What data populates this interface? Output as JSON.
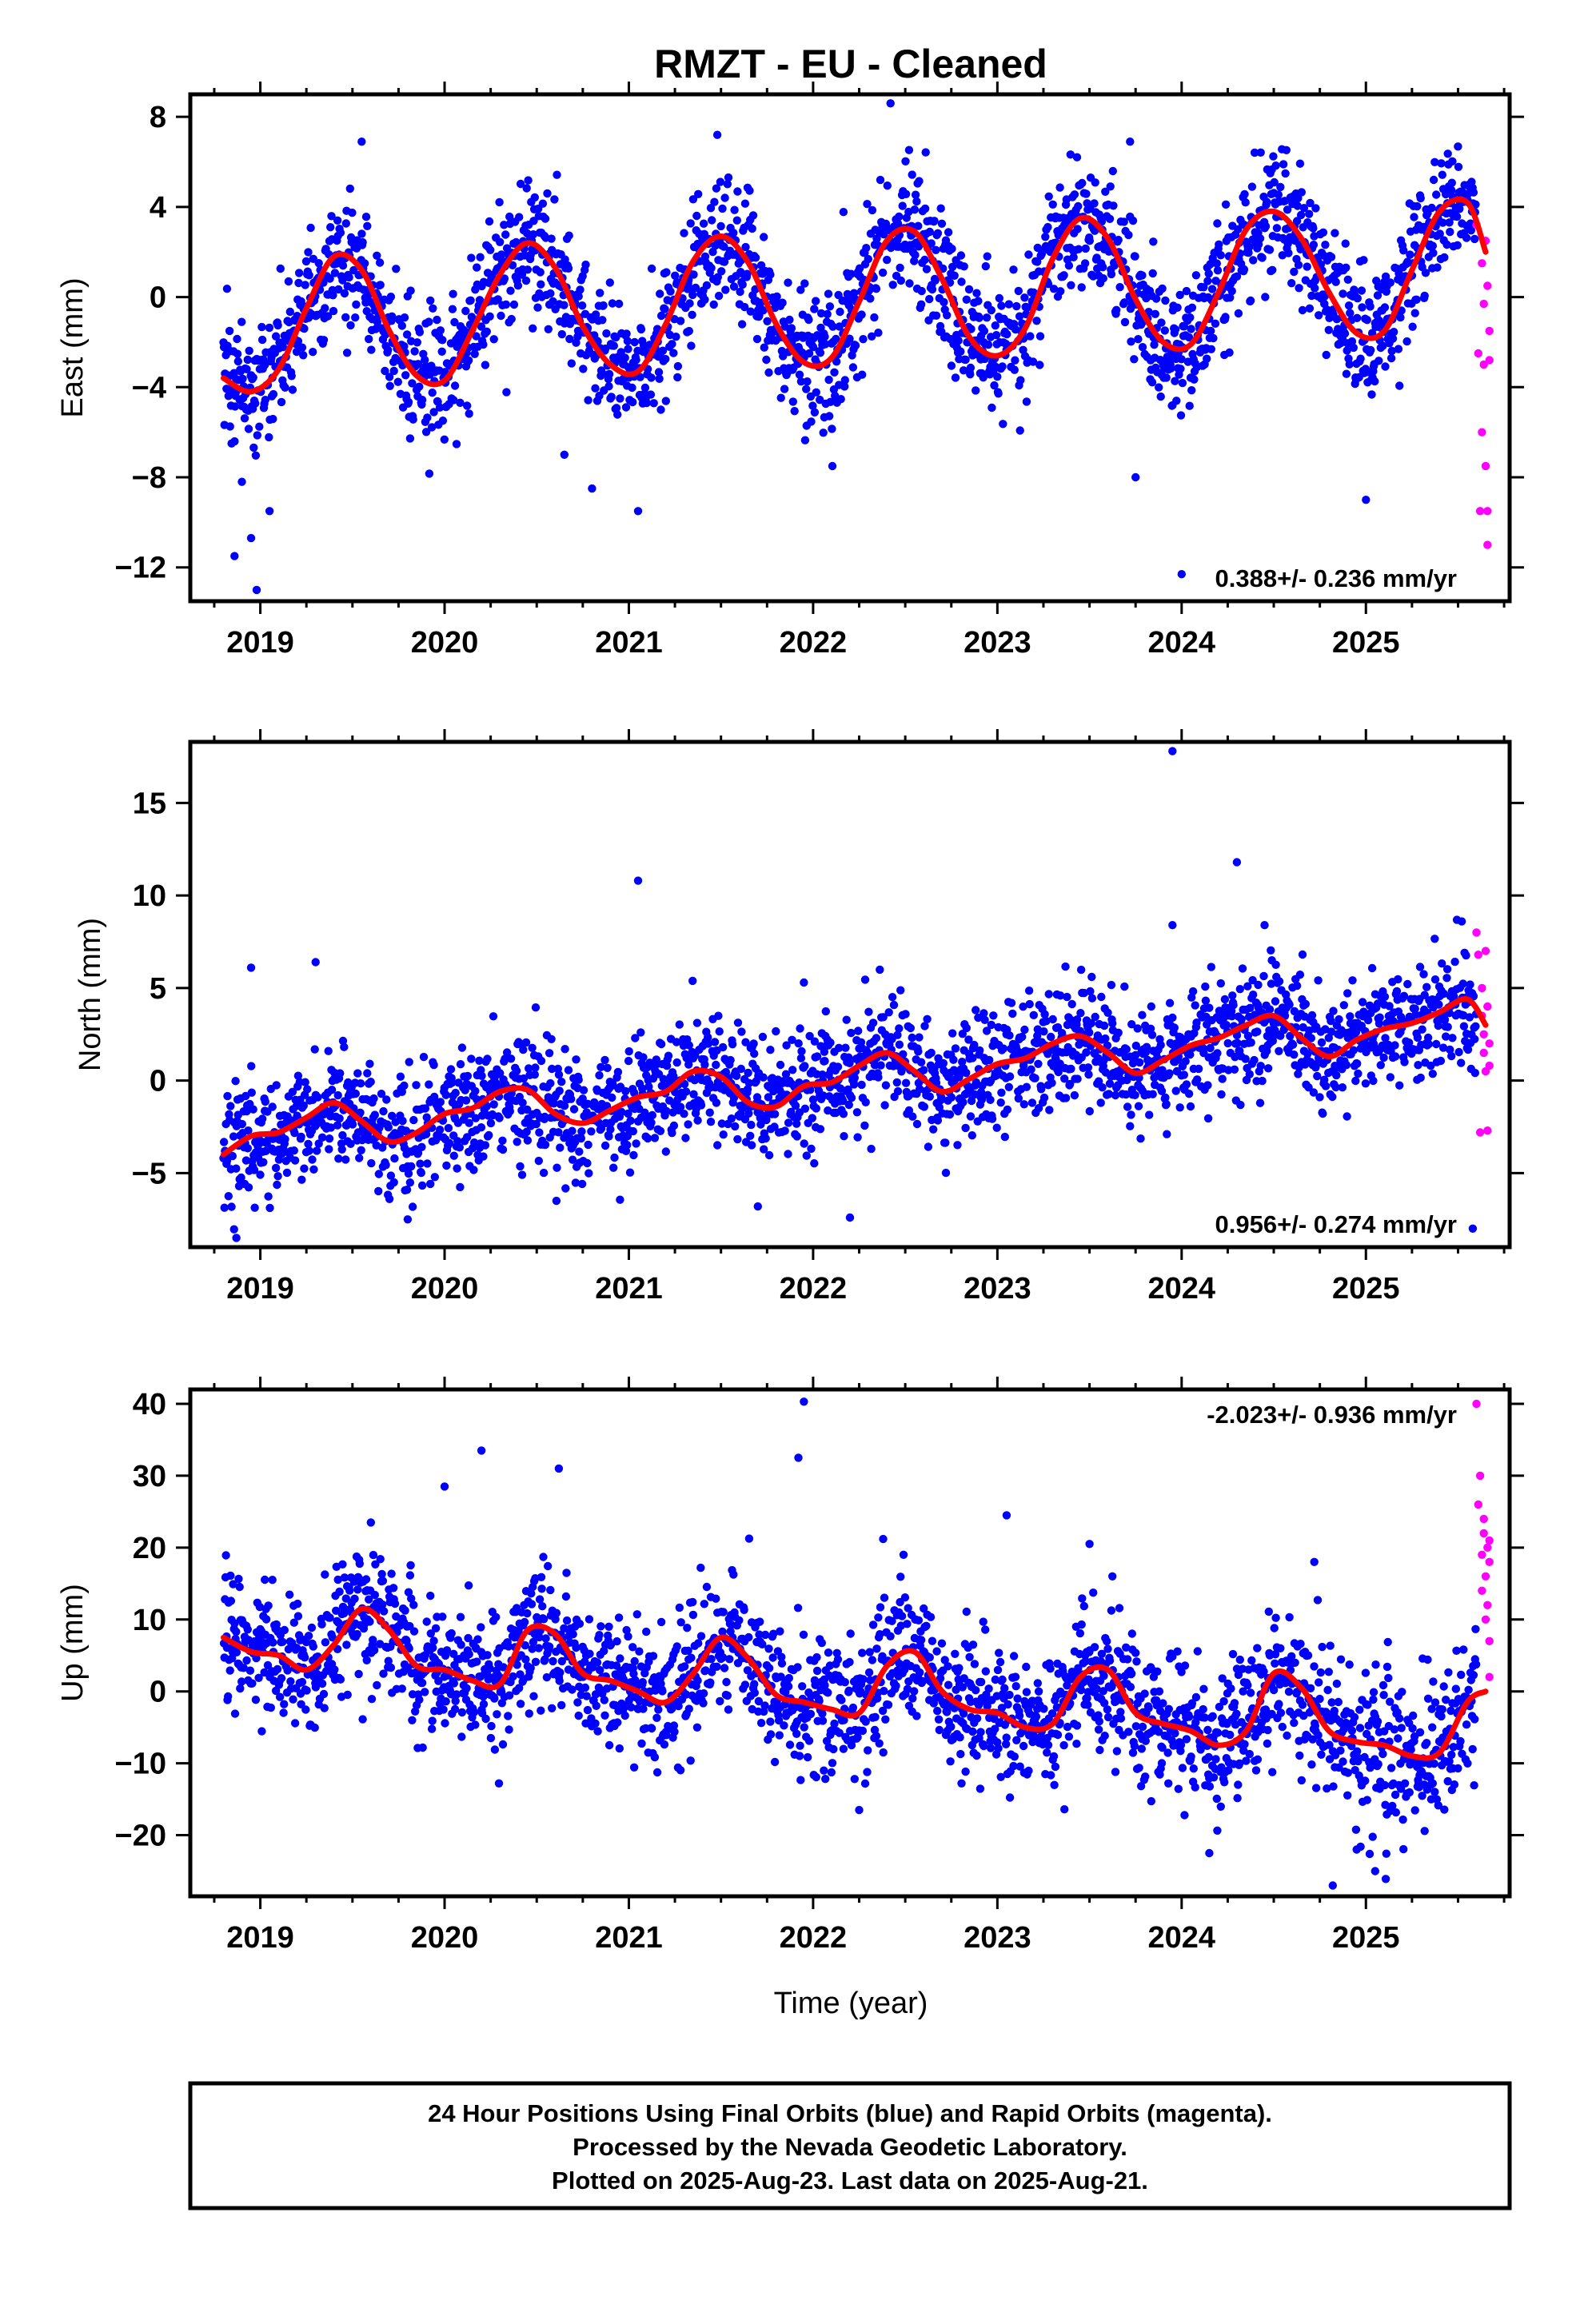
{
  "title": "RMZT  - EU - Cleaned",
  "xlabel": "Time (year)",
  "caption": [
    "24 Hour Positions Using Final Orbits (blue) and Rapid Orbits (magenta).",
    "Processed by the Nevada Geodetic Laboratory.",
    "Plotted on 2025-Aug-23. Last data on 2025-Aug-21."
  ],
  "colors": {
    "final_orbits": "#0000ff",
    "rapid_orbits": "#ff00ff",
    "model": "#ff0000",
    "frame": "#000000"
  },
  "chart_data": [
    {
      "type": "scatter",
      "ylabel": "East (mm)",
      "rate": "0.388+/- 0.236 mm/yr",
      "rate_position": "bottom-right",
      "xlim": [
        2018.62,
        2025.78
      ],
      "ylim": [
        -13.5,
        9
      ],
      "x_ticks": [
        "2019",
        "2020",
        "2021",
        "2022",
        "2023",
        "2024",
        "2025"
      ],
      "y_ticks": [
        "8",
        "4",
        "0",
        "−4",
        "−8",
        "−12"
      ],
      "y_tick_values": [
        8,
        4,
        0,
        -4,
        -8,
        -12
      ],
      "grid": false,
      "model_curve": {
        "x": [
          2018.8,
          2018.95,
          2019.1,
          2019.25,
          2019.4,
          2019.55,
          2019.7,
          2019.85,
          2020.0,
          2020.15,
          2020.3,
          2020.45,
          2020.6,
          2020.75,
          2020.9,
          2021.05,
          2021.2,
          2021.35,
          2021.5,
          2021.65,
          2021.8,
          2021.95,
          2022.1,
          2022.25,
          2022.4,
          2022.55,
          2022.7,
          2022.85,
          2023.0,
          2023.15,
          2023.3,
          2023.45,
          2023.6,
          2023.75,
          2023.9,
          2024.05,
          2024.2,
          2024.35,
          2024.5,
          2024.65,
          2024.8,
          2024.95,
          2025.1,
          2025.25,
          2025.4,
          2025.55,
          2025.65
        ],
        "y": [
          -3.6,
          -4.2,
          -3.2,
          -0.5,
          1.8,
          1.2,
          -1.5,
          -3.5,
          -3.7,
          -1.5,
          1.0,
          2.4,
          1.3,
          -1.3,
          -3.0,
          -3.3,
          -1.2,
          1.6,
          2.7,
          1.5,
          -1.2,
          -2.9,
          -2.7,
          -0.2,
          2.5,
          2.9,
          0.8,
          -1.8,
          -2.6,
          -1.4,
          1.7,
          3.5,
          2.6,
          -0.1,
          -2.0,
          -2.1,
          0.2,
          3.0,
          3.8,
          2.6,
          0.2,
          -1.6,
          -1.5,
          1.2,
          3.8,
          4.2,
          2.0
        ]
      },
      "rapid_points": {
        "x": [
          2025.6,
          2025.61,
          2025.62,
          2025.63,
          2025.63,
          2025.64,
          2025.64,
          2025.65,
          2025.65,
          2025.66,
          2025.66,
          2025.66,
          2025.67,
          2025.67
        ],
        "y": [
          3.2,
          -2.5,
          -9.5,
          1.5,
          -6.0,
          -0.3,
          -3.0,
          -7.5,
          2.5,
          -9.5,
          -11.0,
          0.5,
          -2.8,
          -1.5
        ]
      },
      "final_points_summary": "about 2400 daily solutions, 2018.8-2025.6, annual oscillation around the model curve with about 1.5 mm scatter; outliers down to -13 mm and up to 8.5 mm"
    },
    {
      "type": "scatter",
      "ylabel": "North (mm)",
      "rate": "0.956+/- 0.274 mm/yr",
      "rate_position": "bottom-right",
      "xlim": [
        2018.62,
        2025.78
      ],
      "ylim": [
        -9,
        18.3
      ],
      "x_ticks": [
        "2019",
        "2020",
        "2021",
        "2022",
        "2023",
        "2024",
        "2025"
      ],
      "y_ticks": [
        "15",
        "10",
        "5",
        "0",
        "−5"
      ],
      "y_tick_values": [
        15,
        10,
        5,
        0,
        -5
      ],
      "grid": false,
      "model_curve": {
        "x": [
          2018.8,
          2018.95,
          2019.1,
          2019.25,
          2019.4,
          2019.55,
          2019.7,
          2019.85,
          2020.0,
          2020.15,
          2020.3,
          2020.45,
          2020.6,
          2020.75,
          2020.9,
          2021.05,
          2021.2,
          2021.35,
          2021.5,
          2021.65,
          2021.8,
          2021.95,
          2022.1,
          2022.25,
          2022.4,
          2022.55,
          2022.7,
          2022.85,
          2023.0,
          2023.15,
          2023.3,
          2023.45,
          2023.6,
          2023.75,
          2023.9,
          2024.05,
          2024.2,
          2024.35,
          2024.5,
          2024.65,
          2024.8,
          2024.95,
          2025.1,
          2025.25,
          2025.4,
          2025.55,
          2025.65
        ],
        "y": [
          -4.0,
          -3.0,
          -2.8,
          -2.0,
          -1.2,
          -2.2,
          -3.3,
          -2.8,
          -1.8,
          -1.5,
          -0.6,
          -0.5,
          -1.8,
          -2.3,
          -1.6,
          -0.9,
          -0.6,
          0.5,
          0.2,
          -1.2,
          -1.4,
          -0.3,
          -0.1,
          0.8,
          1.5,
          0.5,
          -0.6,
          0.1,
          0.9,
          1.2,
          2.0,
          2.4,
          1.5,
          0.4,
          1.1,
          1.9,
          2.3,
          3.0,
          3.5,
          2.3,
          1.3,
          2.2,
          2.8,
          3.1,
          3.7,
          4.4,
          3.0
        ]
      },
      "rapid_points": {
        "x": [
          2025.6,
          2025.61,
          2025.62,
          2025.63,
          2025.63,
          2025.64,
          2025.64,
          2025.65,
          2025.65,
          2025.66,
          2025.66,
          2025.67,
          2025.67
        ],
        "y": [
          8.0,
          6.8,
          -2.8,
          5.0,
          3.5,
          2.5,
          1.5,
          7.0,
          0.5,
          4.0,
          -2.7,
          2.0,
          0.8
        ]
      },
      "final_points_summary": "about 2400 daily solutions, 2018.8-2025.6, trend from about -4 mm to +4 mm with about 1.8 mm scatter; outliers up to 17.8 mm and 11.8 mm"
    },
    {
      "type": "scatter",
      "ylabel": "Up (mm)",
      "rate": "-2.023+/- 0.936 mm/yr",
      "rate_position": "top-right",
      "xlim": [
        2018.62,
        2025.78
      ],
      "ylim": [
        -28.5,
        42
      ],
      "x_ticks": [
        "2019",
        "2020",
        "2021",
        "2022",
        "2023",
        "2024",
        "2025"
      ],
      "y_ticks": [
        "40",
        "30",
        "20",
        "10",
        "0",
        "−10",
        "−20"
      ],
      "y_tick_values": [
        40,
        30,
        20,
        10,
        0,
        -10,
        -20
      ],
      "grid": false,
      "model_curve": {
        "x": [
          2018.8,
          2018.95,
          2019.1,
          2019.25,
          2019.4,
          2019.55,
          2019.7,
          2019.85,
          2020.0,
          2020.15,
          2020.3,
          2020.45,
          2020.6,
          2020.75,
          2020.9,
          2021.05,
          2021.2,
          2021.35,
          2021.5,
          2021.65,
          2021.8,
          2021.95,
          2022.1,
          2022.25,
          2022.4,
          2022.55,
          2022.7,
          2022.85,
          2023.0,
          2023.15,
          2023.3,
          2023.45,
          2023.6,
          2023.75,
          2023.9,
          2024.05,
          2024.2,
          2024.35,
          2024.5,
          2024.65,
          2024.8,
          2024.95,
          2025.1,
          2025.25,
          2025.4,
          2025.55,
          2025.65
        ],
        "y": [
          7.5,
          5.5,
          5.0,
          3.0,
          6.5,
          11.5,
          8.5,
          3.5,
          3.0,
          1.5,
          1.0,
          8.5,
          8.0,
          2.5,
          1.5,
          0.0,
          -1.5,
          2.5,
          7.5,
          4.5,
          -0.5,
          -1.5,
          -2.5,
          -3.0,
          3.5,
          5.5,
          0.0,
          -2.5,
          -3.0,
          -5.0,
          -4.5,
          2.0,
          3.0,
          -3.0,
          -4.5,
          -5.5,
          -7.5,
          -5.5,
          2.5,
          0.5,
          -5.5,
          -7.0,
          -7.5,
          -9.0,
          -8.5,
          -1.5,
          0.0
        ]
      },
      "rapid_points": {
        "x": [
          2025.6,
          2025.61,
          2025.62,
          2025.63,
          2025.63,
          2025.64,
          2025.64,
          2025.65,
          2025.65,
          2025.66,
          2025.66,
          2025.67,
          2025.67,
          2025.67,
          2025.67
        ],
        "y": [
          40.0,
          26.0,
          30.0,
          14.0,
          19.0,
          24.0,
          22.0,
          10.0,
          16.0,
          12.0,
          20.0,
          7.0,
          21.0,
          2.0,
          18.0
        ]
      },
      "final_points_summary": "about 2400 daily solutions, 2018.8-2025.6, seasonal signal on a downward trend with about 5 mm scatter; outliers up to 40 mm and down to -27 mm"
    }
  ]
}
